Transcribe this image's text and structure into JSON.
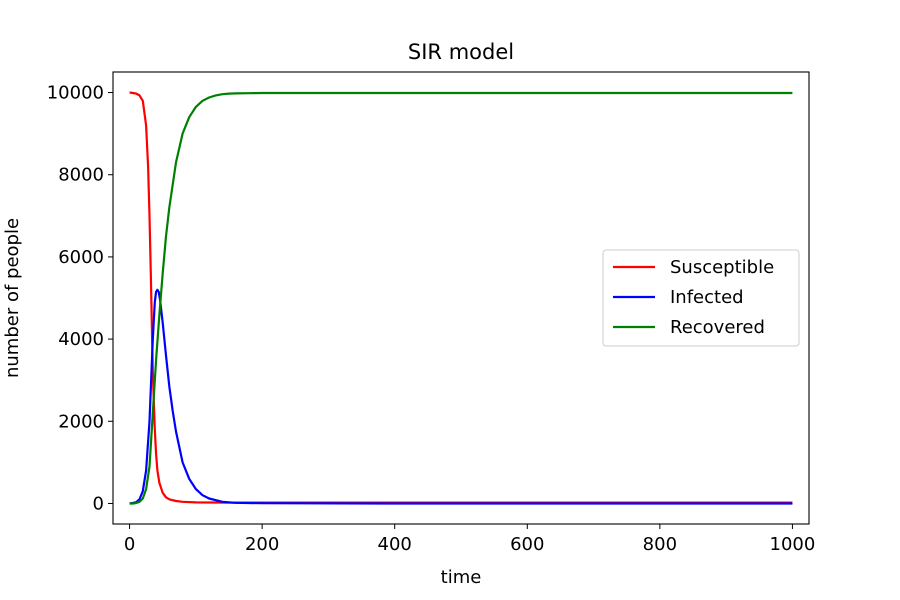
{
  "chart_data": {
    "type": "line",
    "title": "SIR model",
    "xlabel": "time",
    "ylabel": "number of people",
    "xlim": [
      -25,
      1025
    ],
    "ylim": [
      -500,
      10500
    ],
    "xticks": [
      0,
      200,
      400,
      600,
      800,
      1000
    ],
    "yticks": [
      0,
      2000,
      4000,
      6000,
      8000,
      10000
    ],
    "grid": false,
    "legend": "center-right",
    "series": [
      {
        "name": "Susceptible",
        "color": "#ff0000",
        "x": [
          0,
          5,
          10,
          15,
          20,
          25,
          28,
          30,
          32,
          35,
          38,
          40,
          42,
          45,
          50,
          55,
          60,
          70,
          80,
          100,
          150,
          200,
          400,
          600,
          800,
          1000
        ],
        "y": [
          10000,
          9990,
          9975,
          9930,
          9800,
          9200,
          8200,
          7000,
          5600,
          3200,
          1800,
          1200,
          800,
          500,
          260,
          150,
          100,
          60,
          40,
          25,
          20,
          20,
          20,
          20,
          20,
          20
        ]
      },
      {
        "name": "Infected",
        "color": "#0000ff",
        "x": [
          0,
          5,
          10,
          15,
          20,
          25,
          30,
          35,
          38,
          40,
          42,
          44,
          46,
          50,
          55,
          60,
          65,
          70,
          80,
          90,
          100,
          110,
          120,
          140,
          160,
          200,
          400,
          600,
          800,
          1000
        ],
        "y": [
          0,
          10,
          30,
          100,
          300,
          800,
          2000,
          4000,
          4900,
          5150,
          5200,
          5150,
          4950,
          4400,
          3600,
          2850,
          2250,
          1750,
          1000,
          600,
          350,
          200,
          120,
          40,
          15,
          5,
          0,
          0,
          0,
          0
        ]
      },
      {
        "name": "Recovered",
        "color": "#008000",
        "x": [
          0,
          5,
          10,
          15,
          20,
          25,
          30,
          35,
          40,
          45,
          50,
          55,
          60,
          70,
          80,
          90,
          100,
          110,
          120,
          130,
          140,
          150,
          160,
          180,
          200,
          400,
          600,
          800,
          1000
        ],
        "y": [
          0,
          0,
          10,
          40,
          120,
          350,
          900,
          2200,
          3500,
          4600,
          5600,
          6500,
          7200,
          8300,
          9000,
          9400,
          9650,
          9800,
          9880,
          9930,
          9960,
          9975,
          9980,
          9985,
          9990,
          9990,
          9990,
          9990,
          9990
        ]
      }
    ]
  }
}
